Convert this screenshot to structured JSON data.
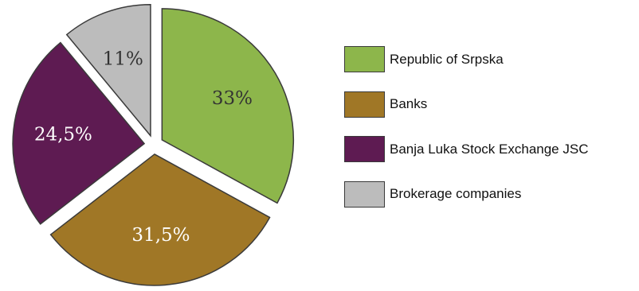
{
  "chart_data": {
    "type": "pie",
    "title": "",
    "slices": [
      {
        "name": "Republic of Srpska",
        "value": 33,
        "label": "33%",
        "color": "#8db64b",
        "label_color": "#333333"
      },
      {
        "name": "Banks",
        "value": 31.5,
        "label": "31,5%",
        "color": "#a07726",
        "label_color": "#ffffff"
      },
      {
        "name": "Banja Luka Stock Exchange JSC",
        "value": 24.5,
        "label": "24,5%",
        "color": "#5e1b52",
        "label_color": "#ffffff"
      },
      {
        "name": "Brokerage companies",
        "value": 11,
        "label": "11%",
        "color": "#bcbcbc",
        "label_color": "#333333"
      }
    ],
    "exploded": true,
    "legend_position": "right"
  }
}
